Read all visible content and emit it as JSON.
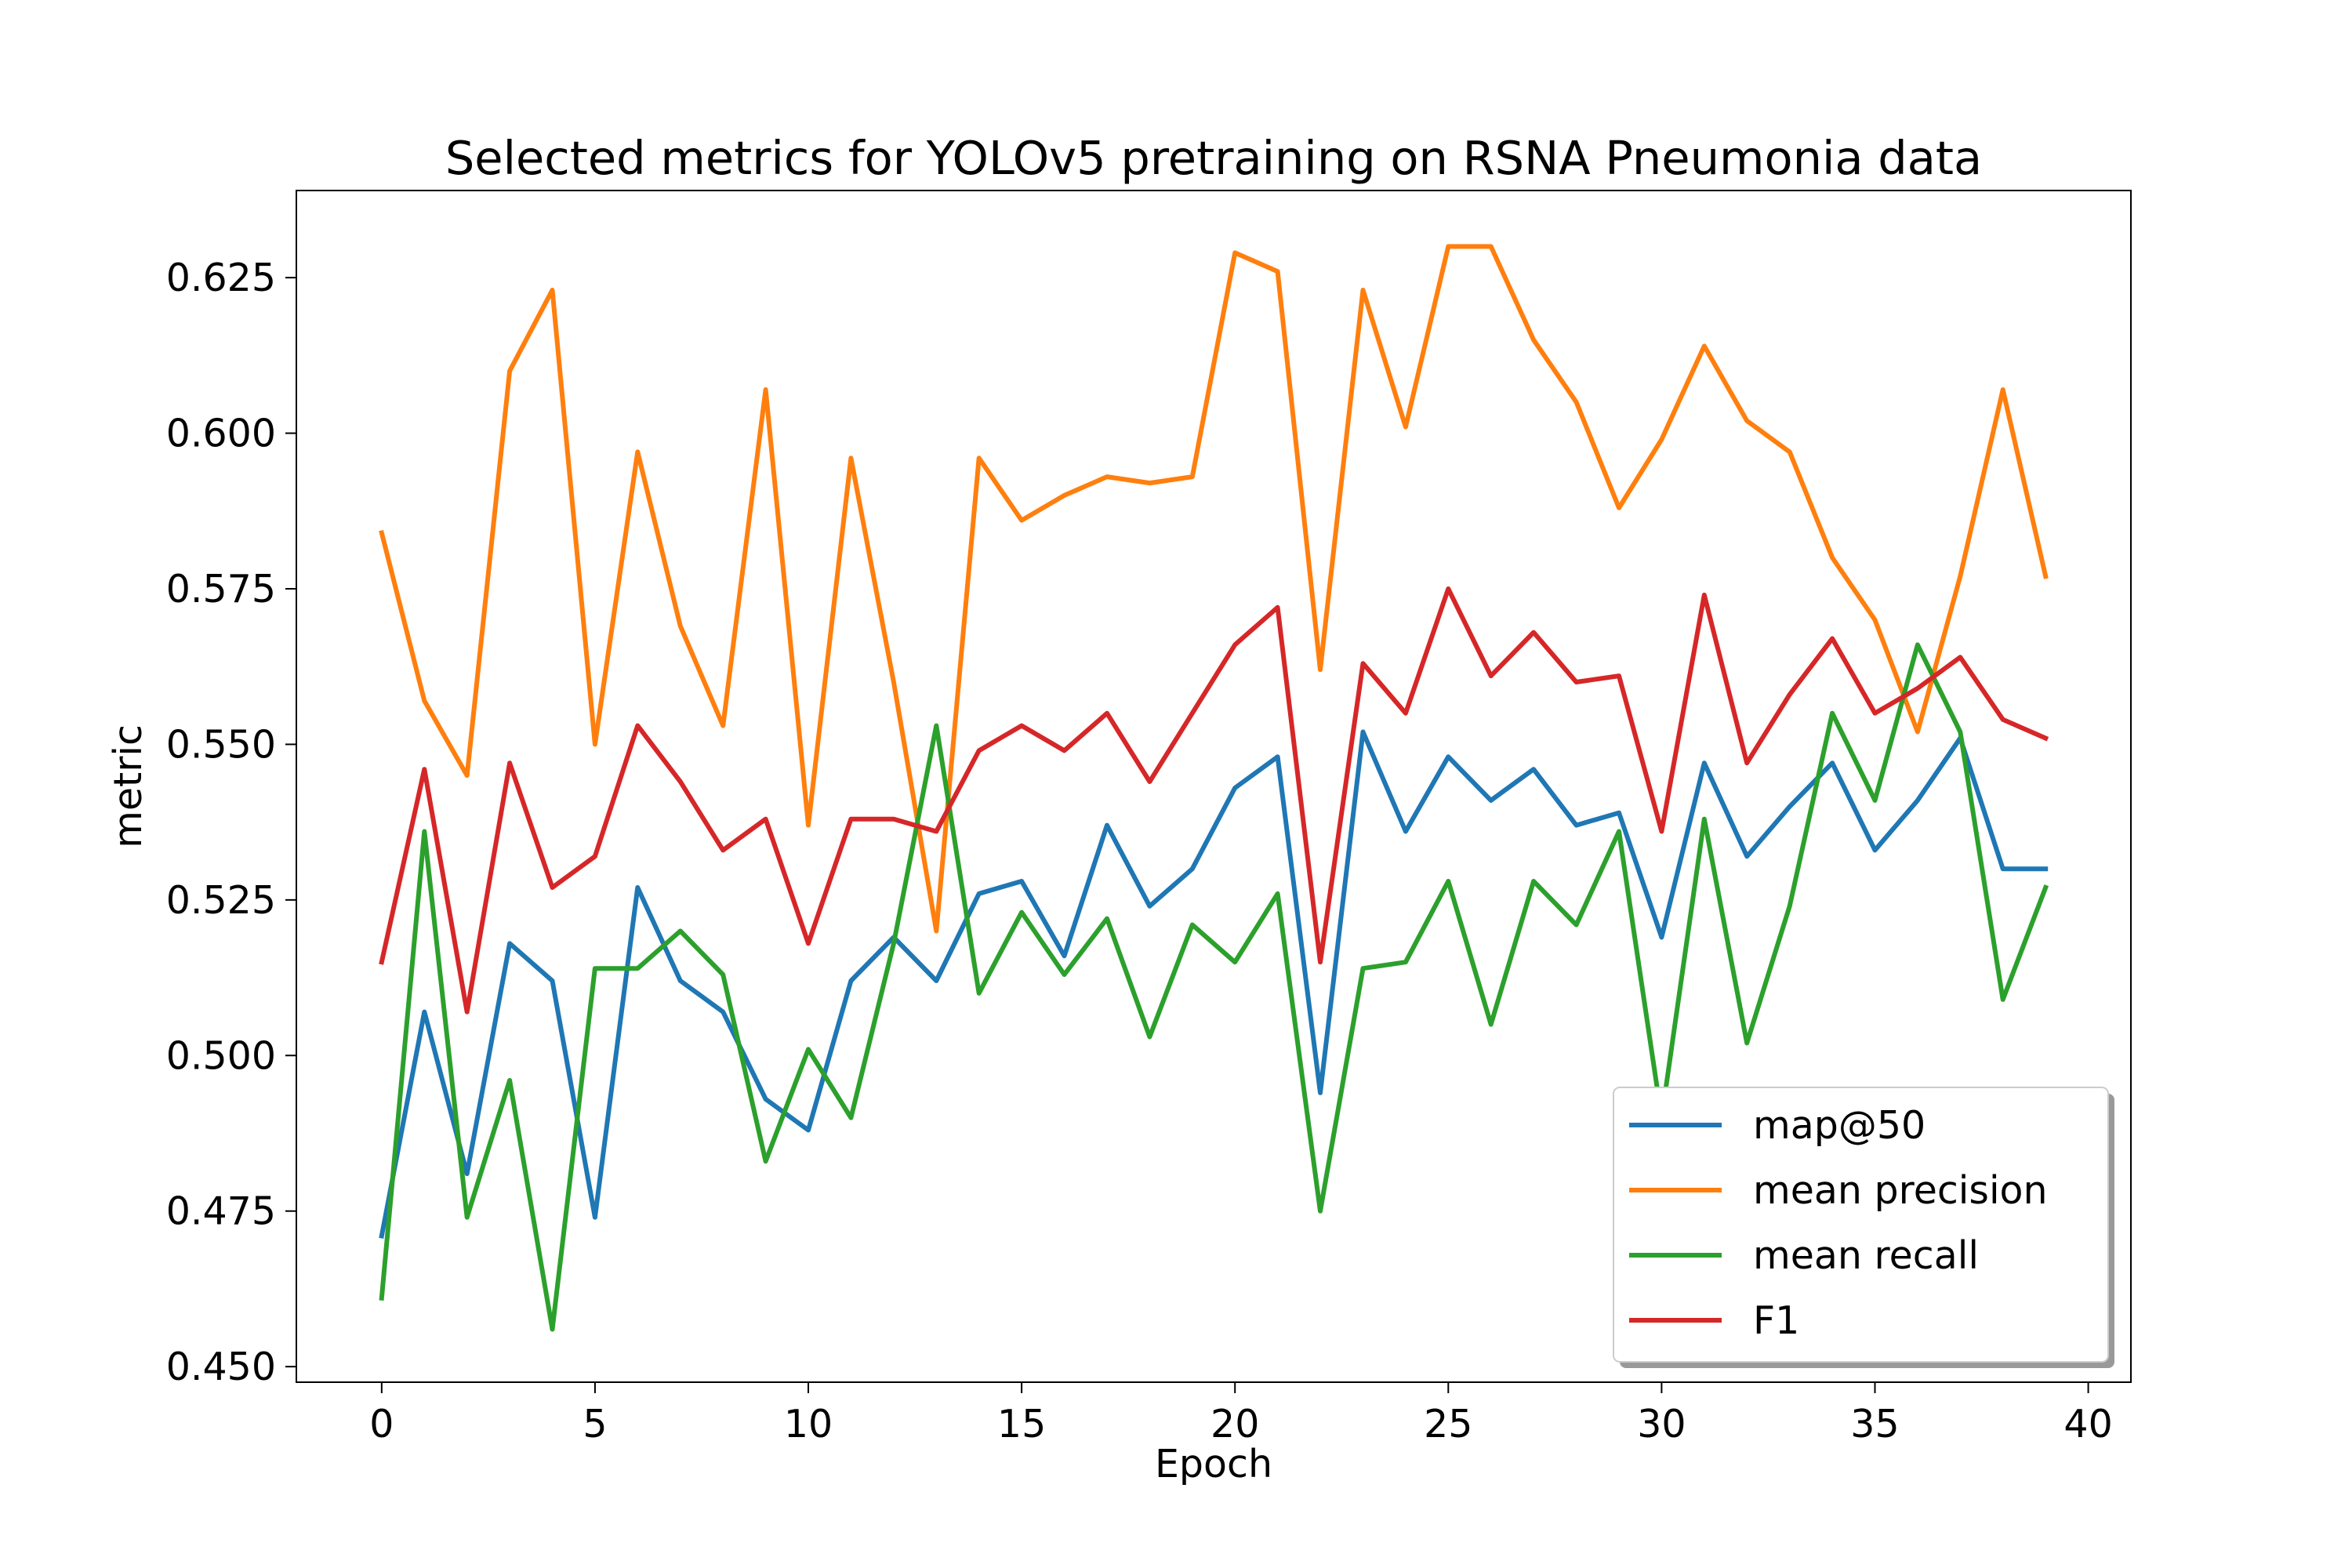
{
  "chart_data": {
    "type": "line",
    "title": "Selected metrics for YOLOv5 pretraining on RSNA Pneumonia data",
    "xlabel": "Epoch",
    "ylabel": "metric",
    "xlim": [
      -2,
      41
    ],
    "ylim": [
      0.4475,
      0.639
    ],
    "x_ticks": [
      0,
      5,
      10,
      15,
      20,
      25,
      30,
      35,
      40
    ],
    "x_tick_labels": [
      "0",
      "5",
      "10",
      "15",
      "20",
      "25",
      "30",
      "35",
      "40"
    ],
    "y_ticks": [
      0.45,
      0.475,
      0.5,
      0.525,
      0.55,
      0.575,
      0.6,
      0.625
    ],
    "y_tick_labels": [
      "0.450",
      "0.475",
      "0.500",
      "0.525",
      "0.550",
      "0.575",
      "0.600",
      "0.625"
    ],
    "grid": false,
    "legend_position": "lower-right",
    "x": [
      0,
      1,
      2,
      3,
      4,
      5,
      6,
      7,
      8,
      9,
      10,
      11,
      12,
      13,
      14,
      15,
      16,
      17,
      18,
      19,
      20,
      21,
      22,
      23,
      24,
      25,
      26,
      27,
      28,
      29,
      30,
      31,
      32,
      33,
      34,
      35,
      36,
      37,
      38,
      39
    ],
    "series": [
      {
        "name": "map@50",
        "color": "#1f77b4",
        "values": [
          0.471,
          0.507,
          0.481,
          0.518,
          0.512,
          0.474,
          0.527,
          0.512,
          0.507,
          0.493,
          0.488,
          0.512,
          0.519,
          0.512,
          0.526,
          0.528,
          0.516,
          0.537,
          0.524,
          0.53,
          0.543,
          0.548,
          0.494,
          0.552,
          0.536,
          0.548,
          0.541,
          0.546,
          0.537,
          0.539,
          0.519,
          0.547,
          0.532,
          0.54,
          0.547,
          0.533,
          0.541,
          0.551,
          0.53,
          0.53
        ]
      },
      {
        "name": "mean precision",
        "color": "#ff7f0e",
        "values": [
          0.584,
          0.557,
          0.545,
          0.61,
          0.623,
          0.55,
          0.597,
          0.569,
          0.553,
          0.607,
          0.537,
          0.596,
          0.56,
          0.52,
          0.596,
          0.586,
          0.59,
          0.593,
          0.592,
          0.593,
          0.629,
          0.626,
          0.562,
          0.623,
          0.601,
          0.63,
          0.63,
          0.615,
          0.605,
          0.588,
          0.599,
          0.614,
          0.602,
          0.597,
          0.58,
          0.57,
          0.552,
          0.577,
          0.607,
          0.577
        ]
      },
      {
        "name": "mean recall",
        "color": "#2ca02c",
        "values": [
          0.461,
          0.536,
          0.474,
          0.496,
          0.456,
          0.514,
          0.514,
          0.52,
          0.513,
          0.483,
          0.501,
          0.49,
          0.518,
          0.553,
          0.51,
          0.523,
          0.513,
          0.522,
          0.503,
          0.521,
          0.515,
          0.526,
          0.475,
          0.514,
          0.515,
          0.528,
          0.505,
          0.528,
          0.521,
          0.536,
          0.49,
          0.538,
          0.502,
          0.524,
          0.555,
          0.541,
          0.566,
          0.552,
          0.509,
          0.527
        ]
      },
      {
        "name": "F1",
        "color": "#d62728",
        "values": [
          0.515,
          0.546,
          0.507,
          0.547,
          0.527,
          0.532,
          0.553,
          0.544,
          0.533,
          0.538,
          0.518,
          0.538,
          0.538,
          0.536,
          0.549,
          0.553,
          0.549,
          0.555,
          0.544,
          0.555,
          0.566,
          0.572,
          0.515,
          0.563,
          0.555,
          0.575,
          0.561,
          0.568,
          0.56,
          0.561,
          0.536,
          0.574,
          0.547,
          0.558,
          0.567,
          0.555,
          0.559,
          0.564,
          0.554,
          0.551
        ]
      }
    ]
  }
}
